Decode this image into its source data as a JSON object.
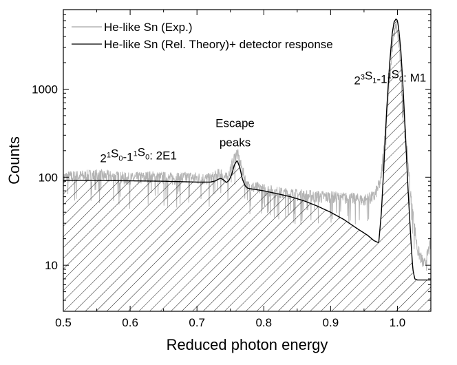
{
  "chart_data": {
    "type": "line",
    "xlabel": "Reduced photon energy",
    "ylabel": "Counts",
    "xlim": [
      0.5,
      1.05
    ],
    "ylim": [
      3,
      8000
    ],
    "yscale": "log",
    "x_ticks": [
      0.5,
      0.6,
      0.7,
      0.8,
      0.9,
      1.0
    ],
    "x_tick_labels": [
      "0.5",
      "0.6",
      "0.7",
      "0.8",
      "0.9",
      "1.0"
    ],
    "y_ticks": [
      10,
      100,
      1000
    ],
    "y_tick_labels": [
      "10",
      "100",
      "1000"
    ],
    "grid": false,
    "legend_position": "top-left",
    "series": [
      {
        "name": "He-like Sn (Exp.)",
        "color": "#b4b4b4",
        "style": "noisy-line",
        "x": [
          0.5,
          0.52,
          0.55,
          0.58,
          0.6,
          0.63,
          0.66,
          0.69,
          0.72,
          0.735,
          0.745,
          0.755,
          0.76,
          0.765,
          0.775,
          0.8,
          0.83,
          0.86,
          0.89,
          0.92,
          0.95,
          0.965,
          0.975,
          0.985,
          0.993,
          0.998,
          1.003,
          1.01,
          1.02,
          1.03,
          1.04,
          1.05
        ],
        "y": [
          100,
          102,
          105,
          100,
          96,
          101,
          97,
          99,
          95,
          110,
          95,
          160,
          190,
          140,
          80,
          72,
          65,
          62,
          60,
          58,
          55,
          60,
          90,
          600,
          3500,
          5500,
          3000,
          500,
          60,
          15,
          10,
          18
        ]
      },
      {
        "name": "He-like Sn (Rel. Theory)+ detector response",
        "color": "#000000",
        "style": "line",
        "x": [
          0.5,
          0.55,
          0.6,
          0.65,
          0.7,
          0.72,
          0.728,
          0.732,
          0.736,
          0.74,
          0.744,
          0.748,
          0.752,
          0.756,
          0.76,
          0.764,
          0.768,
          0.772,
          0.776,
          0.78,
          0.8,
          0.82,
          0.84,
          0.86,
          0.88,
          0.9,
          0.92,
          0.94,
          0.955,
          0.965,
          0.972,
          0.976,
          0.98,
          0.984,
          0.988,
          0.992,
          0.995,
          0.998,
          1.0,
          1.002,
          1.005,
          1.008,
          1.012,
          1.016,
          1.02,
          1.023,
          1.026,
          1.03,
          1.05
        ],
        "y": [
          92,
          92,
          91,
          90,
          88,
          88,
          91,
          95,
          97,
          93,
          87,
          92,
          108,
          138,
          155,
          130,
          95,
          80,
          75,
          74,
          70,
          65,
          60,
          54,
          47,
          40,
          33,
          26,
          22,
          19,
          18,
          40,
          150,
          600,
          1800,
          4200,
          5800,
          6300,
          6000,
          4800,
          2800,
          1200,
          300,
          70,
          20,
          9,
          7,
          6.8,
          6.8
        ]
      }
    ],
    "fill_under": {
      "series": "He-like Sn (Rel. Theory)+ detector response",
      "pattern": "diagonal-hatch"
    },
    "annotations": [
      {
        "text": "Escape",
        "x": 0.757,
        "y": 370
      },
      {
        "text": "peaks",
        "x": 0.757,
        "y": 225
      },
      {
        "text": "2¹S₀-1¹S₀: 2E1",
        "x": 0.555,
        "y": 148
      },
      {
        "text": "2³S₁-1¹S₀: M1",
        "x": 0.935,
        "y": 1130
      }
    ]
  }
}
